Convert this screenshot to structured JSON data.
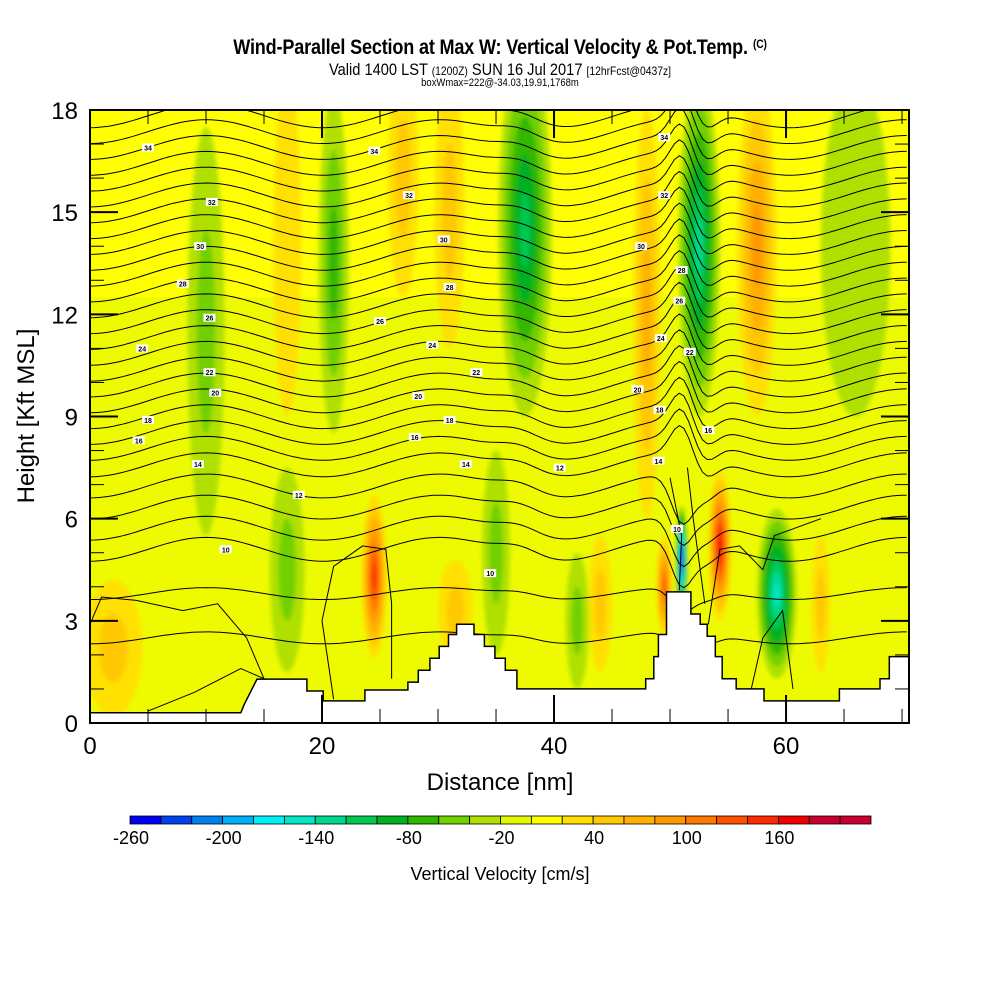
{
  "header": {
    "title": "Wind-Parallel Section at Max W: Vertical Velocity & Pot.Temp.",
    "copyright": "(C)",
    "valid_prefix": "Valid 1400 LST",
    "valid_z": "(1200Z)",
    "valid_date": "SUN 16 Jul 2017",
    "forecast": "[12hrFcst@0437z]",
    "boxwmax": "boxWmax=222@-34.03,19.91,1768m"
  },
  "chart_data": {
    "type": "heatmap",
    "title": "Wind-Parallel Section at Max W: Vertical Velocity & Pot.Temp.",
    "xlabel": "Distance [nm]",
    "ylabel": "Height [Kft MSL]",
    "xlim": [
      0,
      70.6
    ],
    "ylim": [
      0,
      18
    ],
    "xticks": [
      0,
      20,
      40,
      60
    ],
    "xtick_labels": [
      "0",
      "20",
      "40",
      "60"
    ],
    "yticks": [
      0,
      3,
      6,
      9,
      12,
      15,
      18
    ],
    "ytick_labels": [
      "0",
      "3",
      "6",
      "9",
      "12",
      "15",
      "18"
    ],
    "x_minor_step": 5,
    "y_minor_step": 1,
    "colorbar": {
      "label": "Vertical Velocity [cm/s]",
      "min": -260,
      "step": 20,
      "tick_values": [
        -260,
        -200,
        -140,
        -80,
        -20,
        40,
        100,
        160
      ],
      "tick_labels": [
        "-260",
        "-200",
        "-140",
        "-80",
        "-20",
        "40",
        "100",
        "160"
      ],
      "colors": [
        "#0000ee",
        "#0040f0",
        "#0080f0",
        "#00b0f8",
        "#00f0f8",
        "#00e8c8",
        "#00d890",
        "#00c850",
        "#00b020",
        "#30b800",
        "#70d000",
        "#b0e000",
        "#e0f800",
        "#ffff00",
        "#ffe000",
        "#ffc800",
        "#ffb000",
        "#ff9800",
        "#ff7800",
        "#ff5000",
        "#ff2800",
        "#f00000",
        "#c80030"
      ]
    },
    "vertical_velocity_features": [
      {
        "x": 2,
        "y": 2.2,
        "w_cms": 45,
        "sx": 2.5,
        "sy": 2.0
      },
      {
        "x": 10,
        "y": 11.5,
        "w_cms": -40,
        "sx": 1.6,
        "sy": 6
      },
      {
        "x": 17,
        "y": 14,
        "w_cms": 20,
        "sx": 1.2,
        "sy": 5
      },
      {
        "x": 21,
        "y": 13.5,
        "w_cms": -50,
        "sx": 1.3,
        "sy": 5
      },
      {
        "x": 17,
        "y": 4.5,
        "w_cms": -35,
        "sx": 1.5,
        "sy": 3
      },
      {
        "x": 24.5,
        "y": 4.3,
        "w_cms": 140,
        "sx": 1.1,
        "sy": 2.4
      },
      {
        "x": 27,
        "y": 16,
        "w_cms": 30,
        "sx": 1.3,
        "sy": 3.5
      },
      {
        "x": 31,
        "y": 15,
        "w_cms": 30,
        "sx": 1.3,
        "sy": 4
      },
      {
        "x": 31.5,
        "y": 3.3,
        "w_cms": 40,
        "sx": 1.5,
        "sy": 1.5
      },
      {
        "x": 37.5,
        "y": 14.5,
        "w_cms": -100,
        "sx": 2.3,
        "sy": 5.5
      },
      {
        "x": 35,
        "y": 5,
        "w_cms": -45,
        "sx": 1.2,
        "sy": 3
      },
      {
        "x": 42,
        "y": 3,
        "w_cms": -40,
        "sx": 1.0,
        "sy": 2
      },
      {
        "x": 44,
        "y": 3.5,
        "w_cms": 30,
        "sx": 1.0,
        "sy": 2
      },
      {
        "x": 48,
        "y": 12,
        "w_cms": 60,
        "sx": 1.2,
        "sy": 6
      },
      {
        "x": 49.5,
        "y": 4,
        "w_cms": 120,
        "sx": 0.7,
        "sy": 1.5
      },
      {
        "x": 51,
        "y": 4.8,
        "w_cms": -250,
        "sx": 0.5,
        "sy": 1.6
      },
      {
        "x": 52.5,
        "y": 14,
        "w_cms": -110,
        "sx": 1.8,
        "sy": 5
      },
      {
        "x": 54.3,
        "y": 5.2,
        "w_cms": 160,
        "sx": 1.0,
        "sy": 2.2
      },
      {
        "x": 57.5,
        "y": 14,
        "w_cms": 70,
        "sx": 1.7,
        "sy": 5
      },
      {
        "x": 59.2,
        "y": 3.8,
        "w_cms": -140,
        "sx": 1.7,
        "sy": 2.5
      },
      {
        "x": 63,
        "y": 3.5,
        "w_cms": 30,
        "sx": 0.8,
        "sy": 2
      },
      {
        "x": 66,
        "y": 14,
        "w_cms": -25,
        "sx": 3,
        "sy": 5
      }
    ],
    "theta_contour_labels": [
      "34",
      "32",
      "30",
      "28",
      "26",
      "24",
      "22",
      "20",
      "18",
      "16",
      "14",
      "12",
      "10"
    ],
    "theta_label_positions": [
      {
        "text": "34",
        "x": 5,
        "y": 16.9
      },
      {
        "text": "34",
        "x": 24.5,
        "y": 16.8
      },
      {
        "text": "34",
        "x": 49.5,
        "y": 17.2
      },
      {
        "text": "32",
        "x": 10.5,
        "y": 15.3
      },
      {
        "text": "32",
        "x": 27.5,
        "y": 15.5
      },
      {
        "text": "32",
        "x": 49.5,
        "y": 15.5
      },
      {
        "text": "30",
        "x": 9.5,
        "y": 14.0
      },
      {
        "text": "30",
        "x": 30.5,
        "y": 14.2
      },
      {
        "text": "30",
        "x": 47.5,
        "y": 14.0
      },
      {
        "text": "28",
        "x": 8.0,
        "y": 12.9
      },
      {
        "text": "28",
        "x": 31,
        "y": 12.8
      },
      {
        "text": "28",
        "x": 51,
        "y": 13.3
      },
      {
        "text": "26",
        "x": 10.3,
        "y": 11.9
      },
      {
        "text": "26",
        "x": 25,
        "y": 11.8
      },
      {
        "text": "26",
        "x": 50.8,
        "y": 12.4
      },
      {
        "text": "24",
        "x": 4.5,
        "y": 11.0
      },
      {
        "text": "24",
        "x": 29.5,
        "y": 11.1
      },
      {
        "text": "24",
        "x": 49.2,
        "y": 11.3
      },
      {
        "text": "22",
        "x": 10.3,
        "y": 10.3
      },
      {
        "text": "22",
        "x": 33.3,
        "y": 10.3
      },
      {
        "text": "22",
        "x": 51.7,
        "y": 10.9
      },
      {
        "text": "20",
        "x": 10.8,
        "y": 9.7
      },
      {
        "text": "20",
        "x": 28.3,
        "y": 9.6
      },
      {
        "text": "20",
        "x": 47.2,
        "y": 9.8
      },
      {
        "text": "18",
        "x": 5.0,
        "y": 8.9
      },
      {
        "text": "18",
        "x": 31.0,
        "y": 8.9
      },
      {
        "text": "18",
        "x": 49.1,
        "y": 9.2
      },
      {
        "text": "16",
        "x": 4.2,
        "y": 8.3
      },
      {
        "text": "16",
        "x": 28.0,
        "y": 8.4
      },
      {
        "text": "16",
        "x": 53.3,
        "y": 8.6
      },
      {
        "text": "14",
        "x": 9.3,
        "y": 7.6
      },
      {
        "text": "14",
        "x": 32.4,
        "y": 7.6
      },
      {
        "text": "14",
        "x": 49.0,
        "y": 7.7
      },
      {
        "text": "12",
        "x": 18.0,
        "y": 6.7
      },
      {
        "text": "12",
        "x": 40.5,
        "y": 7.5
      },
      {
        "text": "10",
        "x": 11.7,
        "y": 5.1
      },
      {
        "text": "10",
        "x": 34.5,
        "y": 4.4
      },
      {
        "text": "10",
        "x": 50.6,
        "y": 5.7
      }
    ],
    "terrain_kft": [
      [
        0,
        0.3
      ],
      [
        13,
        0.3
      ],
      [
        13.3,
        0.55
      ],
      [
        14.4,
        1.29
      ],
      [
        18.7,
        1.29
      ],
      [
        18.7,
        0.94
      ],
      [
        20.1,
        0.94
      ],
      [
        20.1,
        0.65
      ],
      [
        23.7,
        0.65
      ],
      [
        23.7,
        0.97
      ],
      [
        27.4,
        0.97
      ],
      [
        27.4,
        1.2
      ],
      [
        28.3,
        1.2
      ],
      [
        28.3,
        1.55
      ],
      [
        29.3,
        1.55
      ],
      [
        29.3,
        1.9
      ],
      [
        30.1,
        1.9
      ],
      [
        30.1,
        2.25
      ],
      [
        30.9,
        2.25
      ],
      [
        30.9,
        2.6
      ],
      [
        31.6,
        2.6
      ],
      [
        31.6,
        2.9
      ],
      [
        33.1,
        2.9
      ],
      [
        33.1,
        2.6
      ],
      [
        34.0,
        2.6
      ],
      [
        34.0,
        2.25
      ],
      [
        34.9,
        2.25
      ],
      [
        34.9,
        1.9
      ],
      [
        35.8,
        1.9
      ],
      [
        35.8,
        1.55
      ],
      [
        36.8,
        1.55
      ],
      [
        36.8,
        1.0
      ],
      [
        41.9,
        1.0
      ],
      [
        41.9,
        1.0
      ],
      [
        42.9,
        1.0
      ],
      [
        42.9,
        1.0
      ],
      [
        47.9,
        1.0
      ],
      [
        47.9,
        1.3
      ],
      [
        48.6,
        1.3
      ],
      [
        48.6,
        1.95
      ],
      [
        49.0,
        1.95
      ],
      [
        49.0,
        2.6
      ],
      [
        49.7,
        2.6
      ],
      [
        49.7,
        3.85
      ],
      [
        51.8,
        3.85
      ],
      [
        51.8,
        3.2
      ],
      [
        52.6,
        3.2
      ],
      [
        52.6,
        2.9
      ],
      [
        53.2,
        2.9
      ],
      [
        53.2,
        2.55
      ],
      [
        53.9,
        2.55
      ],
      [
        53.9,
        1.95
      ],
      [
        54.5,
        1.95
      ],
      [
        54.5,
        1.3
      ],
      [
        55.7,
        1.3
      ],
      [
        55.7,
        1.0
      ],
      [
        58.1,
        1.0
      ],
      [
        58.1,
        0.65
      ],
      [
        61.5,
        0.65
      ],
      [
        61.5,
        0.65
      ],
      [
        64.6,
        0.65
      ],
      [
        64.6,
        1.0
      ],
      [
        68.1,
        1.0
      ],
      [
        68.1,
        1.3
      ],
      [
        68.9,
        1.3
      ],
      [
        68.9,
        1.95
      ],
      [
        70.6,
        1.95
      ]
    ]
  }
}
